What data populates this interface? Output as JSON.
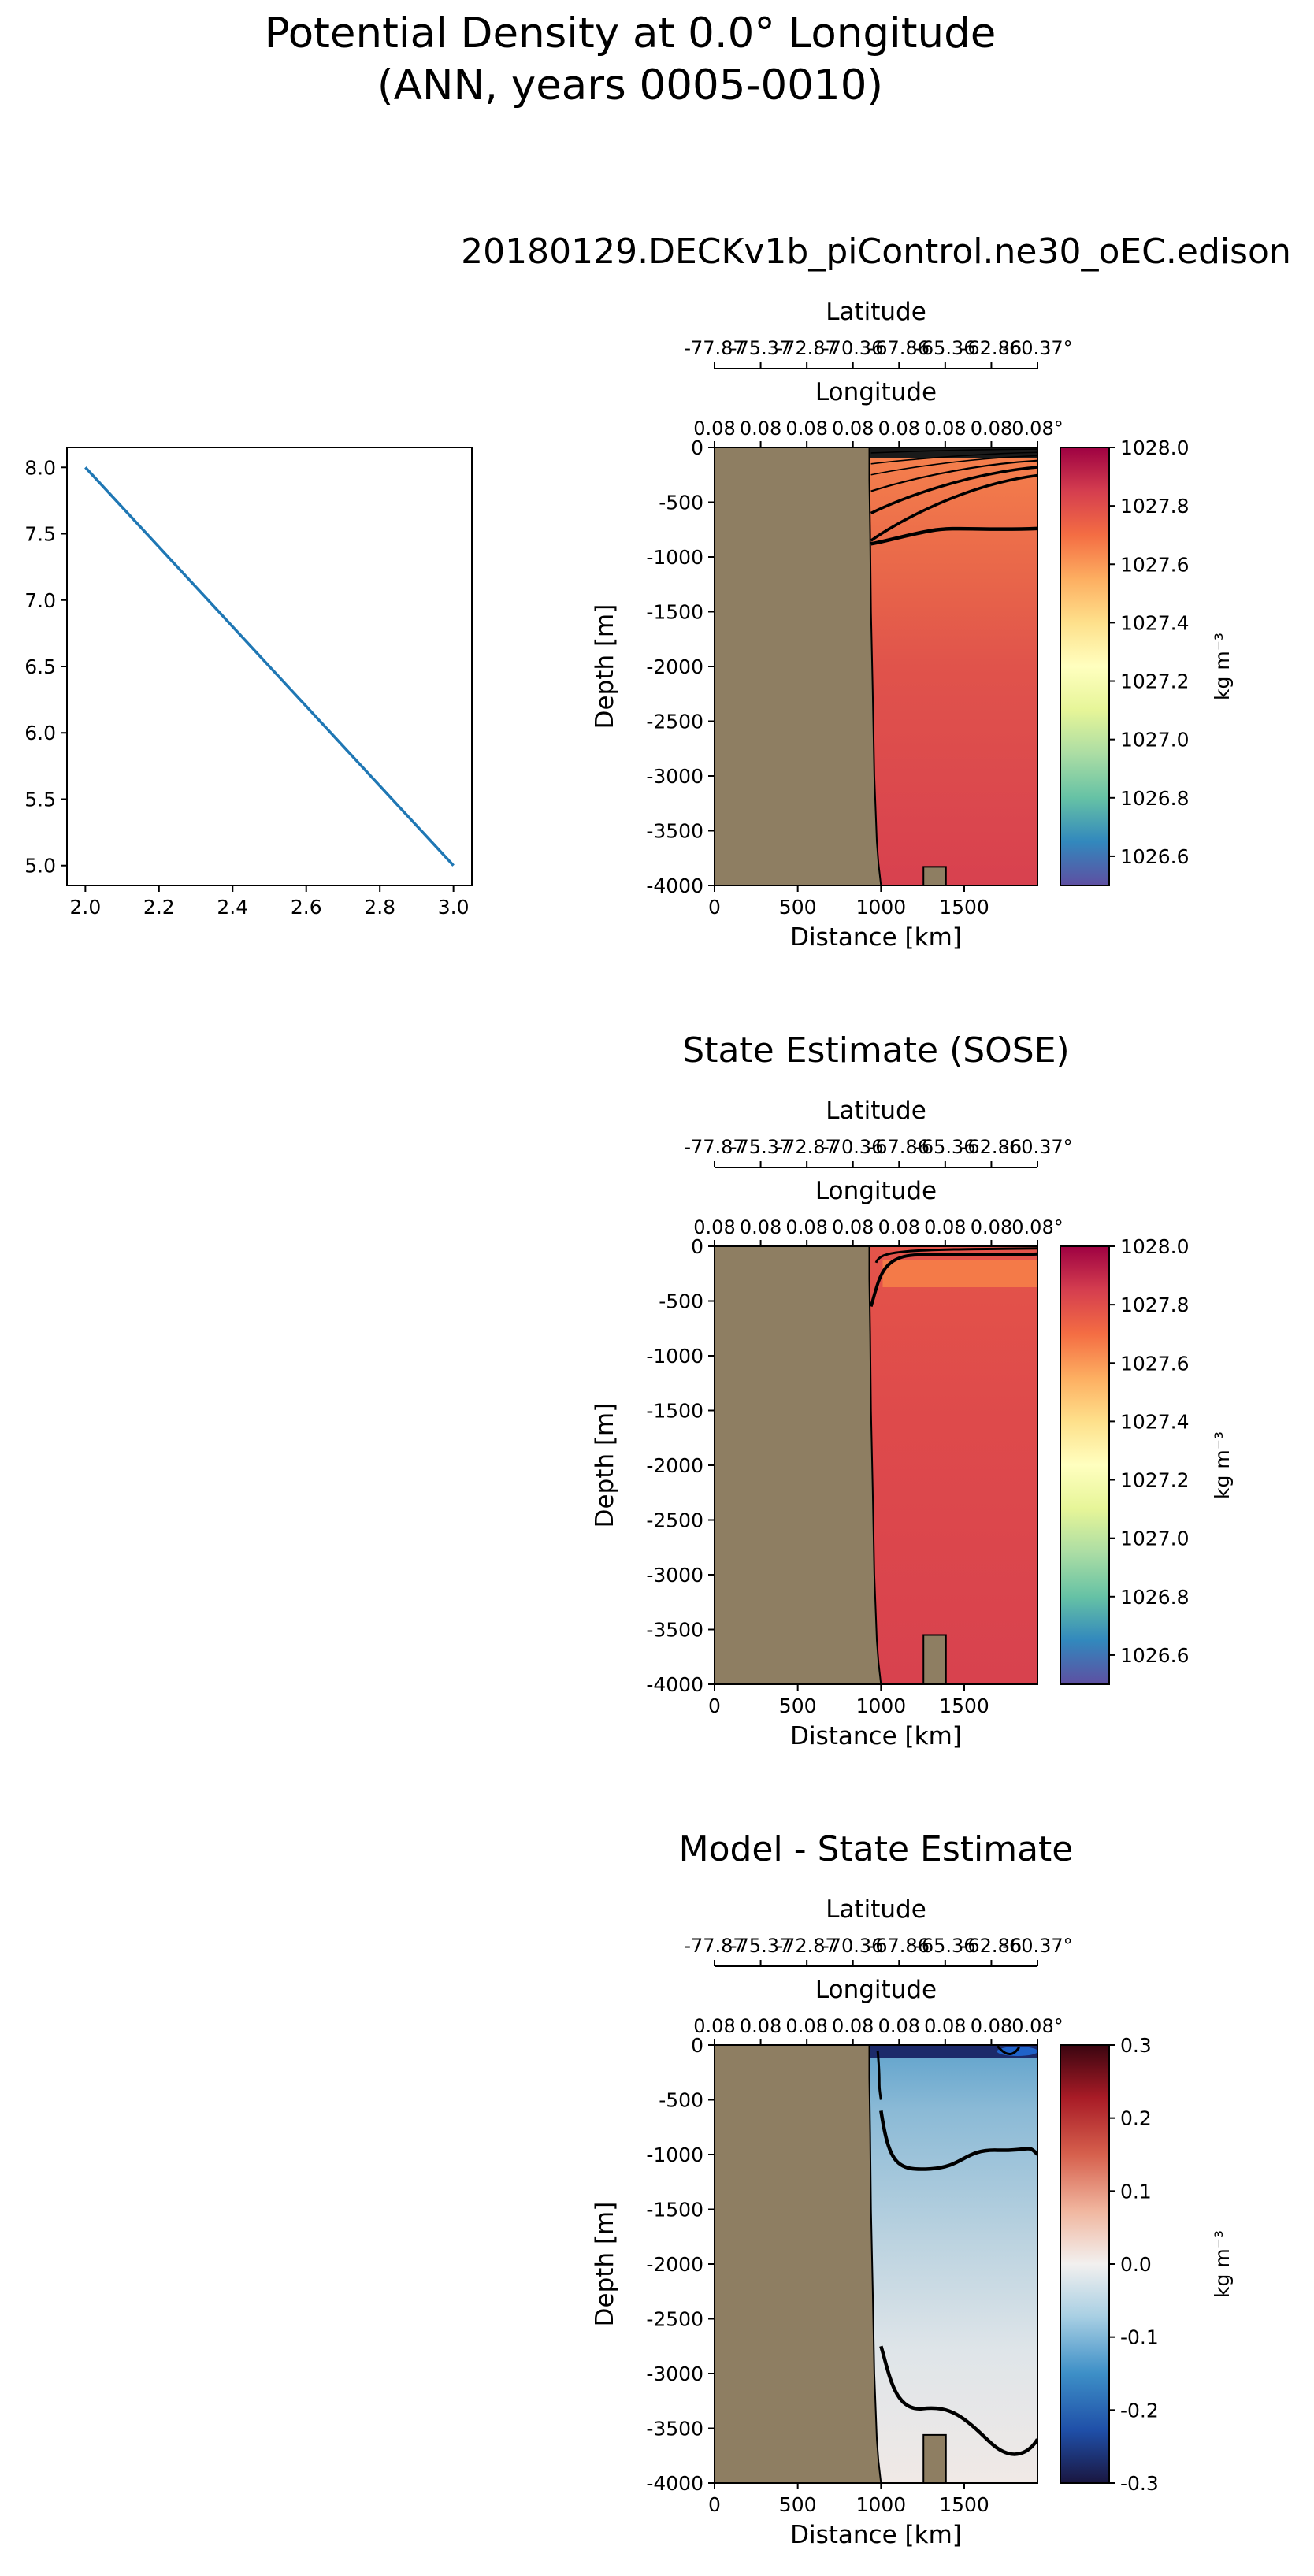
{
  "figure": {
    "title_line1": "Potential Density at 0.0° Longitude",
    "title_line2": "(ANN, years 0005-0010)"
  },
  "chart_data": [
    {
      "id": "test-line",
      "type": "line",
      "x": [
        2.0,
        3.0
      ],
      "y": [
        8.0,
        5.0
      ],
      "xlim": [
        1.95,
        3.05
      ],
      "ylim": [
        4.85,
        8.15
      ],
      "xticks": [
        "2.0",
        "2.2",
        "2.4",
        "2.6",
        "2.8",
        "3.0"
      ],
      "yticks": [
        "5.0",
        "5.5",
        "6.0",
        "6.5",
        "7.0",
        "7.5",
        "8.0"
      ],
      "line_color": "#1f77b4"
    },
    {
      "id": "model",
      "type": "heatmap",
      "title": "20180129.DECKv1b_piControl.ne30_oEC.edison",
      "xlabel": "Distance [km]",
      "ylabel": "Depth [m]",
      "xlim": [
        0,
        1940
      ],
      "ylim": [
        -4000,
        0
      ],
      "xticks": [
        "0",
        "500",
        "1000",
        "1500"
      ],
      "yticks": [
        "0",
        "-500",
        "-1000",
        "-1500",
        "-2000",
        "-2500",
        "-3000",
        "-3500",
        "-4000"
      ],
      "lat_label": "Latitude",
      "lat_ticks": [
        "-77.87",
        "-75.37",
        "-72.87",
        "-70.36",
        "-67.86",
        "-65.36",
        "-62.86",
        "-60.37°"
      ],
      "lon_label": "Longitude",
      "lon_ticks": [
        "0.08",
        "0.08",
        "0.08",
        "0.08",
        "0.08",
        "0.08",
        "0.08",
        "0.08°"
      ],
      "colorbar": {
        "label": "kg m⁻³",
        "range": [
          1026.5,
          1028.0
        ],
        "ticks": [
          "1026.6",
          "1026.8",
          "1027.0",
          "1027.2",
          "1027.4",
          "1027.6",
          "1027.8",
          "1028.0"
        ],
        "colormap": "Spectral_r"
      }
    },
    {
      "id": "obs",
      "type": "heatmap",
      "title": "State Estimate (SOSE)",
      "xlabel": "Distance [km]",
      "ylabel": "Depth [m]",
      "xlim": [
        0,
        1940
      ],
      "ylim": [
        -4000,
        0
      ],
      "xticks": [
        "0",
        "500",
        "1000",
        "1500"
      ],
      "yticks": [
        "0",
        "-500",
        "-1000",
        "-1500",
        "-2000",
        "-2500",
        "-3000",
        "-3500",
        "-4000"
      ],
      "lat_label": "Latitude",
      "lat_ticks": [
        "-77.87",
        "-75.37",
        "-72.87",
        "-70.36",
        "-67.86",
        "-65.36",
        "-62.86",
        "-60.37°"
      ],
      "lon_label": "Longitude",
      "lon_ticks": [
        "0.08",
        "0.08",
        "0.08",
        "0.08",
        "0.08",
        "0.08",
        "0.08",
        "0.08°"
      ],
      "colorbar": {
        "label": "kg m⁻³",
        "range": [
          1026.5,
          1028.0
        ],
        "ticks": [
          "1026.6",
          "1026.8",
          "1027.0",
          "1027.2",
          "1027.4",
          "1027.6",
          "1027.8",
          "1028.0"
        ],
        "colormap": "Spectral_r"
      }
    },
    {
      "id": "diff",
      "type": "heatmap",
      "title": "Model - State Estimate",
      "xlabel": "Distance [km]",
      "ylabel": "Depth [m]",
      "xlim": [
        0,
        1940
      ],
      "ylim": [
        -4000,
        0
      ],
      "xticks": [
        "0",
        "500",
        "1000",
        "1500"
      ],
      "yticks": [
        "0",
        "-500",
        "-1000",
        "-1500",
        "-2000",
        "-2500",
        "-3000",
        "-3500",
        "-4000"
      ],
      "lat_label": "Latitude",
      "lat_ticks": [
        "-77.87",
        "-75.37",
        "-72.87",
        "-70.36",
        "-67.86",
        "-65.36",
        "-62.86",
        "-60.37°"
      ],
      "lon_label": "Longitude",
      "lon_ticks": [
        "0.08",
        "0.08",
        "0.08",
        "0.08",
        "0.08",
        "0.08",
        "0.08",
        "0.08°"
      ],
      "colorbar": {
        "label": "kg m⁻³",
        "range": [
          -0.3,
          0.3
        ],
        "ticks": [
          "-0.3",
          "-0.2",
          "-0.1",
          "0.0",
          "0.1",
          "0.2",
          "0.3"
        ],
        "colormap": "RdBu_r"
      }
    }
  ],
  "colors": {
    "land": "#8e7e62",
    "model_field": "#e2504a",
    "obs_field": "#e04848",
    "diff_field": "#aac8dc"
  }
}
